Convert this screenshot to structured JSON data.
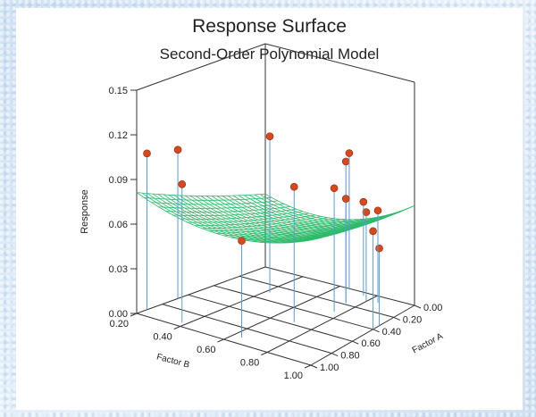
{
  "chart_data": {
    "type": "surface3d",
    "title": "Response Surface",
    "subtitle": "Second-Order Polynomial Model",
    "zlabel": "Response",
    "xlabel": "Factor A",
    "ylabel": "Factor B",
    "zlim": [
      0,
      0.15
    ],
    "xlim": [
      0,
      1
    ],
    "ylim": [
      0.2,
      1
    ],
    "z_ticks": [
      "0.00",
      "0.03",
      "0.06",
      "0.09",
      "0.12",
      "0.15"
    ],
    "x_ticks": [
      "0.00",
      "0.20",
      "0.40",
      "0.60",
      "0.80",
      "1.00"
    ],
    "y_ticks": [
      "0.20",
      "0.40",
      "0.60",
      "0.80",
      "1.00"
    ],
    "surface_model": {
      "intercept": 0.0608,
      "a": 0.0285,
      "b": -0.0748,
      "a2": 0.0075,
      "b2": 0.081,
      "ab": -0.019
    },
    "surface_color": "#2dbb6a",
    "point_color": "#d9481c",
    "drop_line_color": "#5b9bd5",
    "points": [
      {
        "a": 0.92,
        "b": 0.2,
        "response": 0.105
      },
      {
        "a": 0.68,
        "b": 0.2,
        "response": 0.1
      },
      {
        "a": 0.95,
        "b": 0.38,
        "response": 0.093
      },
      {
        "a": 0.92,
        "b": 0.64,
        "response": 0.065
      },
      {
        "a": 0.57,
        "b": 0.7,
        "response": 0.091
      },
      {
        "a": 0.3,
        "b": 0.42,
        "response": 0.105
      },
      {
        "a": 0.32,
        "b": 0.76,
        "response": 0.083
      },
      {
        "a": 0.18,
        "b": 0.74,
        "response": 0.095
      },
      {
        "a": 0.4,
        "b": 1.0,
        "response": 0.066
      },
      {
        "a": 0.0,
        "b": 0.65,
        "response": 0.091
      },
      {
        "a": 0.34,
        "b": 1.05,
        "response": 0.052
      },
      {
        "a": 0.18,
        "b": 0.74,
        "response": 0.07
      },
      {
        "a": 0.1,
        "b": 0.8,
        "response": 0.06
      },
      {
        "a": 0.04,
        "b": 0.75,
        "response": 0.063
      },
      {
        "a": 0.08,
        "b": 0.85,
        "response": 0.062
      }
    ]
  }
}
